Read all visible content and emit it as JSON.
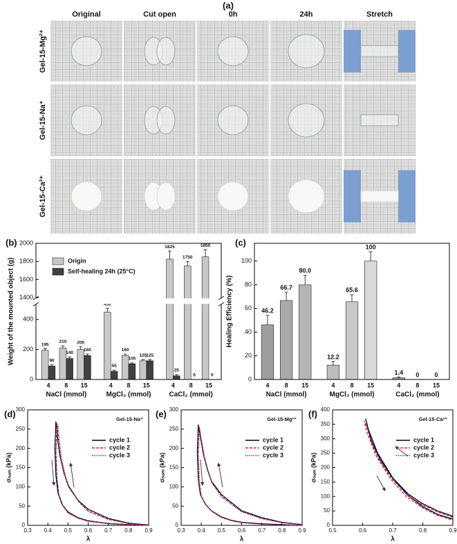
{
  "photo_panel": {
    "label": "(a)",
    "columns": [
      "Original",
      "Cut open",
      "0h",
      "24h",
      "Stretch"
    ],
    "rows": [
      "Gel-15-Mg²⁺",
      "Gel-15-Na⁺",
      "Gel-15-Ca²⁺"
    ]
  },
  "chart_data": [
    {
      "type": "bar",
      "panel": "(b)",
      "ylabel": "Weight of the mounted object (g)",
      "categories": [
        "4",
        "8",
        "15",
        "4",
        "8",
        "15",
        "4",
        "8",
        "15"
      ],
      "group_labels": [
        "NaCl (mmol)",
        "MgCl₂ (mmol)",
        "CaCl₂ (mmol)"
      ],
      "series": [
        {
          "name": "Origin",
          "color": "#c8c8c8",
          "values": [
            195,
            210,
            200,
            450,
            160,
            125,
            1825,
            1750,
            1850
          ],
          "errors": [
            10,
            15,
            18,
            25,
            10,
            8,
            90,
            50,
            80
          ]
        },
        {
          "name": "Self-healing 24h (25°C)",
          "color": "#404040",
          "values": [
            90,
            140,
            160,
            55,
            105,
            125,
            25,
            0,
            0
          ],
          "errors": [
            8,
            10,
            10,
            8,
            6,
            8,
            8,
            0,
            0
          ]
        }
      ],
      "ylim": [
        0,
        2000
      ],
      "ybreak": [
        500,
        1400
      ],
      "yticks": [
        0,
        200,
        400,
        1400,
        1600,
        1800,
        2000
      ],
      "legend": "upper left"
    },
    {
      "type": "bar",
      "panel": "(c)",
      "ylabel": "Healing Efficiency (%)",
      "categories": [
        "4",
        "8",
        "15",
        "4",
        "8",
        "15",
        "4",
        "8",
        "15"
      ],
      "group_labels": [
        "NaCl (mmol)",
        "MgCl₂ (mmol)",
        "CaCl₂ (mmol)"
      ],
      "values": [
        46.2,
        66.7,
        80,
        12.2,
        65.6,
        100,
        1.4,
        0,
        0
      ],
      "value_labels": [
        "46.2",
        "66.7",
        "80.0",
        "12.2",
        "65.6",
        "100",
        "1.4",
        "0",
        "0"
      ],
      "errors": [
        8,
        7,
        8,
        3,
        6,
        8,
        0.6,
        0,
        0
      ],
      "colors": [
        "#9e9e9e",
        "#a9a9a9",
        "#b5b5b5",
        "#bdbdbd",
        "#c9c9c9",
        "#d9d9d9",
        "#9e9e9e",
        "#a9a9a9",
        "#b5b5b5"
      ],
      "ylim": [
        0,
        115
      ],
      "yticks": [
        0,
        20,
        40,
        60,
        80,
        100
      ]
    },
    {
      "type": "line",
      "panel": "(d)",
      "annotation": "Gel-15-Na⁺",
      "xlabel": "λ",
      "ylabel": "σₙₒₘ (kPa)",
      "xlim": [
        0.3,
        0.9
      ],
      "xticks": [
        0.3,
        0.4,
        0.5,
        0.6,
        0.7,
        0.8,
        0.9
      ],
      "ylim": [
        0,
        300
      ],
      "yticks": [
        0,
        50,
        100,
        150,
        200,
        250,
        300
      ],
      "legend": "upper right",
      "series": [
        {
          "name": "cycle 1",
          "color": "#000000",
          "style": "solid",
          "x": [
            0.9,
            0.8,
            0.7,
            0.6,
            0.55,
            0.5,
            0.48,
            0.46,
            0.45,
            0.44,
            0.435,
            0.44,
            0.45,
            0.47,
            0.5,
            0.55,
            0.6,
            0.7,
            0.8,
            0.9
          ],
          "y": [
            1,
            6,
            18,
            42,
            65,
            105,
            135,
            180,
            220,
            270,
            200,
            130,
            85,
            55,
            35,
            20,
            12,
            5,
            2,
            0
          ]
        },
        {
          "name": "cycle 2",
          "color": "#e0201b",
          "style": "dashed",
          "x": [
            0.9,
            0.8,
            0.7,
            0.6,
            0.555,
            0.505,
            0.485,
            0.465,
            0.455,
            0.445,
            0.44,
            0.445,
            0.455,
            0.475,
            0.5,
            0.55,
            0.6,
            0.7,
            0.8,
            0.9
          ],
          "y": [
            1,
            5,
            16,
            38,
            60,
            98,
            128,
            172,
            212,
            265,
            195,
            125,
            80,
            52,
            33,
            19,
            11,
            5,
            2,
            0
          ]
        },
        {
          "name": "cycle 3",
          "color": "#1f1fa8",
          "style": "dotted",
          "x": [
            0.9,
            0.8,
            0.7,
            0.6,
            0.56,
            0.51,
            0.49,
            0.47,
            0.46,
            0.45,
            0.44,
            0.445,
            0.455,
            0.475,
            0.5,
            0.55,
            0.6,
            0.7,
            0.8,
            0.9
          ],
          "y": [
            1,
            5,
            15,
            36,
            58,
            95,
            125,
            168,
            208,
            262,
            190,
            122,
            78,
            50,
            32,
            18,
            10,
            4,
            1,
            0
          ]
        }
      ]
    },
    {
      "type": "line",
      "panel": "(e)",
      "annotation": "Gel-15-Mg²⁺",
      "xlabel": "λ",
      "ylabel": "σₙₒₘ (kPa)",
      "xlim": [
        0.3,
        0.9
      ],
      "xticks": [
        0.3,
        0.4,
        0.5,
        0.6,
        0.7,
        0.8,
        0.9
      ],
      "ylim": [
        0,
        300
      ],
      "yticks": [
        0,
        50,
        100,
        150,
        200,
        250,
        300
      ],
      "legend": "upper right",
      "series": [
        {
          "name": "cycle 1",
          "color": "#000000",
          "style": "solid",
          "x": [
            0.9,
            0.8,
            0.7,
            0.6,
            0.5,
            0.45,
            0.43,
            0.41,
            0.4,
            0.385,
            0.38,
            0.385,
            0.395,
            0.42,
            0.45,
            0.5,
            0.55,
            0.6,
            0.7,
            0.9
          ],
          "y": [
            2,
            8,
            20,
            38,
            80,
            115,
            145,
            185,
            215,
            262,
            190,
            120,
            80,
            55,
            38,
            22,
            13,
            8,
            4,
            0
          ]
        },
        {
          "name": "cycle 2",
          "color": "#e0201b",
          "style": "dashed",
          "x": [
            0.9,
            0.8,
            0.7,
            0.6,
            0.5,
            0.453,
            0.433,
            0.413,
            0.403,
            0.388,
            0.383,
            0.388,
            0.398,
            0.423,
            0.453,
            0.5,
            0.55,
            0.6,
            0.7,
            0.9
          ],
          "y": [
            2,
            7,
            18,
            36,
            76,
            110,
            140,
            180,
            210,
            258,
            185,
            116,
            77,
            53,
            36,
            21,
            12,
            7,
            3,
            0
          ]
        },
        {
          "name": "cycle 3",
          "color": "#1f1fa8",
          "style": "dotted",
          "x": [
            0.9,
            0.8,
            0.7,
            0.6,
            0.5,
            0.456,
            0.436,
            0.416,
            0.406,
            0.391,
            0.386,
            0.391,
            0.401,
            0.426,
            0.456,
            0.5,
            0.55,
            0.6,
            0.7,
            0.9
          ],
          "y": [
            2,
            7,
            17,
            35,
            74,
            108,
            138,
            178,
            207,
            255,
            182,
            114,
            75,
            52,
            35,
            20,
            12,
            7,
            3,
            0
          ]
        }
      ]
    },
    {
      "type": "line",
      "panel": "(f)",
      "annotation": "Gel-15-Ca²⁺",
      "xlabel": "λ",
      "ylabel": "σₙₒₘ (kPa)",
      "xlim": [
        0.5,
        0.9
      ],
      "xticks": [
        0.5,
        0.6,
        0.7,
        0.8,
        0.9
      ],
      "ylim": [
        0,
        400
      ],
      "yticks": [
        0,
        50,
        100,
        150,
        200,
        250,
        300,
        350,
        400
      ],
      "legend": "upper right",
      "series": [
        {
          "name": "cycle 1",
          "color": "#000000",
          "style": "solid",
          "x": [
            0.9,
            0.85,
            0.8,
            0.75,
            0.7,
            0.66,
            0.63,
            0.615,
            0.61,
            0.62,
            0.65,
            0.7,
            0.75,
            0.8,
            0.85,
            0.9
          ],
          "y": [
            32,
            50,
            75,
            110,
            165,
            225,
            290,
            345,
            370,
            330,
            250,
            165,
            105,
            65,
            38,
            22
          ]
        },
        {
          "name": "cycle 2",
          "color": "#e0201b",
          "style": "dashed",
          "x": [
            0.9,
            0.85,
            0.8,
            0.75,
            0.7,
            0.66,
            0.63,
            0.615,
            0.605,
            0.615,
            0.645,
            0.695,
            0.745,
            0.8,
            0.85,
            0.9
          ],
          "y": [
            28,
            46,
            70,
            104,
            158,
            218,
            282,
            338,
            362,
            320,
            240,
            158,
            100,
            60,
            34,
            18
          ]
        },
        {
          "name": "cycle 3",
          "color": "#1f1fa8",
          "style": "dotted",
          "x": [
            0.9,
            0.85,
            0.8,
            0.75,
            0.7,
            0.66,
            0.63,
            0.615,
            0.61,
            0.62,
            0.65,
            0.7,
            0.75,
            0.8,
            0.85,
            0.9
          ],
          "y": [
            30,
            48,
            73,
            108,
            162,
            222,
            288,
            342,
            368,
            325,
            245,
            160,
            102,
            62,
            36,
            20
          ]
        }
      ]
    }
  ]
}
